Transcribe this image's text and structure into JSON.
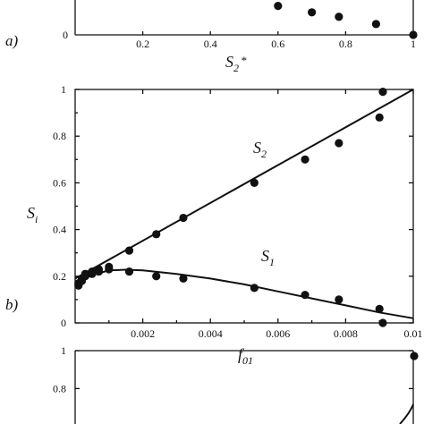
{
  "chart_data": [
    {
      "panel": "a)",
      "type": "scatter",
      "xlabel": {
        "base": "S",
        "sub": "2",
        "sup": "*"
      },
      "ylabel": "",
      "xlim": [
        0,
        1
      ],
      "xticks": [
        "0.2",
        "0.4",
        "0.6",
        "0.8",
        "1"
      ],
      "yticks": [
        "0"
      ],
      "series": [
        {
          "points": [
            [
              0.6,
              0.72
            ],
            [
              0.7,
              0.56
            ],
            [
              0.78,
              0.45
            ],
            [
              0.89,
              0.27
            ],
            [
              1.0,
              0.0
            ]
          ]
        }
      ]
    },
    {
      "panel": "b)",
      "type": "scatter",
      "xlabel": {
        "base": "f",
        "sub": "01"
      },
      "ylabel": {
        "base": "S",
        "sub": "i"
      },
      "xlim": [
        0,
        0.01
      ],
      "ylim": [
        0,
        1
      ],
      "xticks": [
        "0.002",
        "0.004",
        "0.006",
        "0.008",
        "0.01"
      ],
      "yticks": [
        "0",
        "0.2",
        "0.4",
        "0.6",
        "0.8",
        "1"
      ],
      "curves": [
        {
          "label": {
            "base": "S",
            "sub": "2"
          },
          "kind": "line",
          "from": [
            0,
            0.19
          ],
          "to": [
            0.01,
            1.0
          ]
        },
        {
          "label": {
            "base": "S",
            "sub": "1"
          },
          "kind": "curve",
          "points": [
            [
              0,
              0.17
            ],
            [
              0.0005,
              0.205
            ],
            [
              0.001,
              0.225
            ],
            [
              0.0015,
              0.228
            ],
            [
              0.002,
              0.225
            ],
            [
              0.003,
              0.21
            ],
            [
              0.004,
              0.19
            ],
            [
              0.005,
              0.165
            ],
            [
              0.006,
              0.135
            ],
            [
              0.007,
              0.105
            ],
            [
              0.008,
              0.075
            ],
            [
              0.009,
              0.045
            ],
            [
              0.01,
              0.02
            ]
          ]
        }
      ],
      "series": [
        {
          "points": [
            [
              0.0001,
              0.17
            ],
            [
              0.0002,
              0.19
            ],
            [
              0.0003,
              0.21
            ],
            [
              0.0005,
              0.22
            ],
            [
              0.0007,
              0.23
            ],
            [
              0.001,
              0.24
            ],
            [
              0.0016,
              0.31
            ],
            [
              0.0024,
              0.38
            ],
            [
              0.0032,
              0.45
            ],
            [
              0.0053,
              0.6
            ],
            [
              0.0068,
              0.7
            ],
            [
              0.0078,
              0.77
            ],
            [
              0.009,
              0.88
            ],
            [
              0.0091,
              0.99
            ]
          ]
        },
        {
          "points": [
            [
              0.0001,
              0.16
            ],
            [
              0.0002,
              0.18
            ],
            [
              0.0003,
              0.2
            ],
            [
              0.0005,
              0.21
            ],
            [
              0.0007,
              0.22
            ],
            [
              0.001,
              0.23
            ],
            [
              0.0016,
              0.22
            ],
            [
              0.0024,
              0.2
            ],
            [
              0.0032,
              0.19
            ],
            [
              0.0053,
              0.15
            ],
            [
              0.0068,
              0.12
            ],
            [
              0.0078,
              0.1
            ],
            [
              0.009,
              0.06
            ],
            [
              0.0091,
              0.0
            ]
          ]
        }
      ]
    },
    {
      "panel": "",
      "type": "scatter",
      "ylim": [
        0,
        1
      ],
      "yticks": [
        "1",
        "0.8"
      ],
      "series": [
        {
          "points": [
            [
              1.0,
              0.92
            ]
          ]
        }
      ]
    }
  ]
}
